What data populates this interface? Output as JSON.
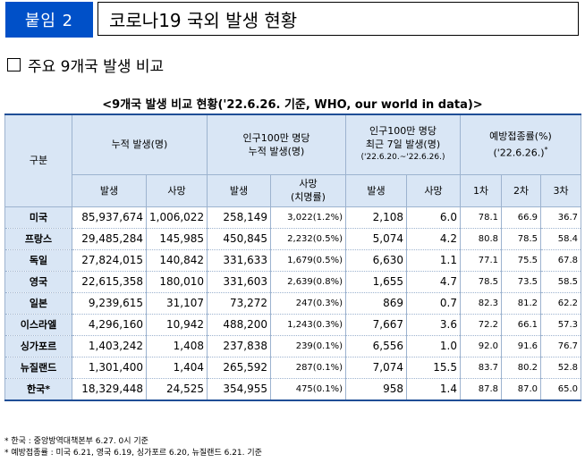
{
  "header": {
    "badge": "붙임 2",
    "title": "코로나19 국외 발생 현황"
  },
  "section": {
    "label": "주요 9개국 발생 비교"
  },
  "table": {
    "caption": "<9개국 발생 비교 현황('22.6.26. 기준, WHO, our world in data)>",
    "headers": {
      "country": "구분",
      "cumulative": "누적 발생(명)",
      "per_million_line1": "인구100만 명당",
      "per_million_line2": "누적 발생(명)",
      "recent_line1": "인구100만 명당",
      "recent_line2": "최근 7일 발생(명)",
      "recent_line3": "('22.6.20.~'22.6.26.)",
      "vax_line1": "예방접종률(%)",
      "vax_line2": "('22.6.26.)",
      "vax_mark": "*",
      "cases": "발생",
      "deaths": "사망",
      "pm_cases": "발생",
      "pm_deaths_line1": "사망",
      "pm_deaths_line2": "(치명률)",
      "r_cases": "발생",
      "r_deaths": "사망",
      "dose1": "1차",
      "dose2": "2차",
      "dose3": "3차"
    },
    "rows": [
      {
        "country": "미국",
        "cases": "85,937,674",
        "deaths": "1,006,022",
        "pm_cases": "258,149",
        "pm_deaths": "3,022(1.2%)",
        "r_cases": "2,108",
        "r_deaths": "6.0",
        "dose1": "78.1",
        "dose2": "66.9",
        "dose3": "36.7"
      },
      {
        "country": "프랑스",
        "cases": "29,485,284",
        "deaths": "145,985",
        "pm_cases": "450,845",
        "pm_deaths": "2,232(0.5%)",
        "r_cases": "5,074",
        "r_deaths": "4.2",
        "dose1": "80.8",
        "dose2": "78.5",
        "dose3": "58.4"
      },
      {
        "country": "독일",
        "cases": "27,824,015",
        "deaths": "140,842",
        "pm_cases": "331,633",
        "pm_deaths": "1,679(0.5%)",
        "r_cases": "6,630",
        "r_deaths": "1.1",
        "dose1": "77.1",
        "dose2": "75.5",
        "dose3": "67.8"
      },
      {
        "country": "영국",
        "cases": "22,615,358",
        "deaths": "180,010",
        "pm_cases": "331,603",
        "pm_deaths": "2,639(0.8%)",
        "r_cases": "1,655",
        "r_deaths": "4.7",
        "dose1": "78.5",
        "dose2": "73.5",
        "dose3": "58.5"
      },
      {
        "country": "일본",
        "cases": "9,239,615",
        "deaths": "31,107",
        "pm_cases": "73,272",
        "pm_deaths": "247(0.3%)",
        "r_cases": "869",
        "r_deaths": "0.7",
        "dose1": "82.3",
        "dose2": "81.2",
        "dose3": "62.2"
      },
      {
        "country": "이스라엘",
        "cases": "4,296,160",
        "deaths": "10,942",
        "pm_cases": "488,200",
        "pm_deaths": "1,243(0.3%)",
        "r_cases": "7,667",
        "r_deaths": "3.6",
        "dose1": "72.2",
        "dose2": "66.1",
        "dose3": "57.3"
      },
      {
        "country": "싱가포르",
        "cases": "1,403,242",
        "deaths": "1,408",
        "pm_cases": "237,838",
        "pm_deaths": "239(0.1%)",
        "r_cases": "6,556",
        "r_deaths": "1.0",
        "dose1": "92.0",
        "dose2": "91.6",
        "dose3": "76.7"
      },
      {
        "country": "뉴질랜드",
        "cases": "1,301,400",
        "deaths": "1,404",
        "pm_cases": "265,592",
        "pm_deaths": "287(0.1%)",
        "r_cases": "7,074",
        "r_deaths": "15.5",
        "dose1": "83.7",
        "dose2": "80.2",
        "dose3": "52.8"
      },
      {
        "country": "한국*",
        "cases": "18,329,448",
        "deaths": "24,525",
        "pm_cases": "354,955",
        "pm_deaths": "475(0.1%)",
        "r_cases": "958",
        "r_deaths": "1.4",
        "dose1": "87.8",
        "dose2": "87.0",
        "dose3": "65.0"
      }
    ]
  },
  "notes": {
    "line1": "* 한국 : 중앙방역대책본부 6.27. 0시 기준",
    "line2": "* 예방접종률 : 미국 6.21, 영국 6.19, 싱가포르 6.20, 뉴질랜드 6.21. 기준"
  }
}
